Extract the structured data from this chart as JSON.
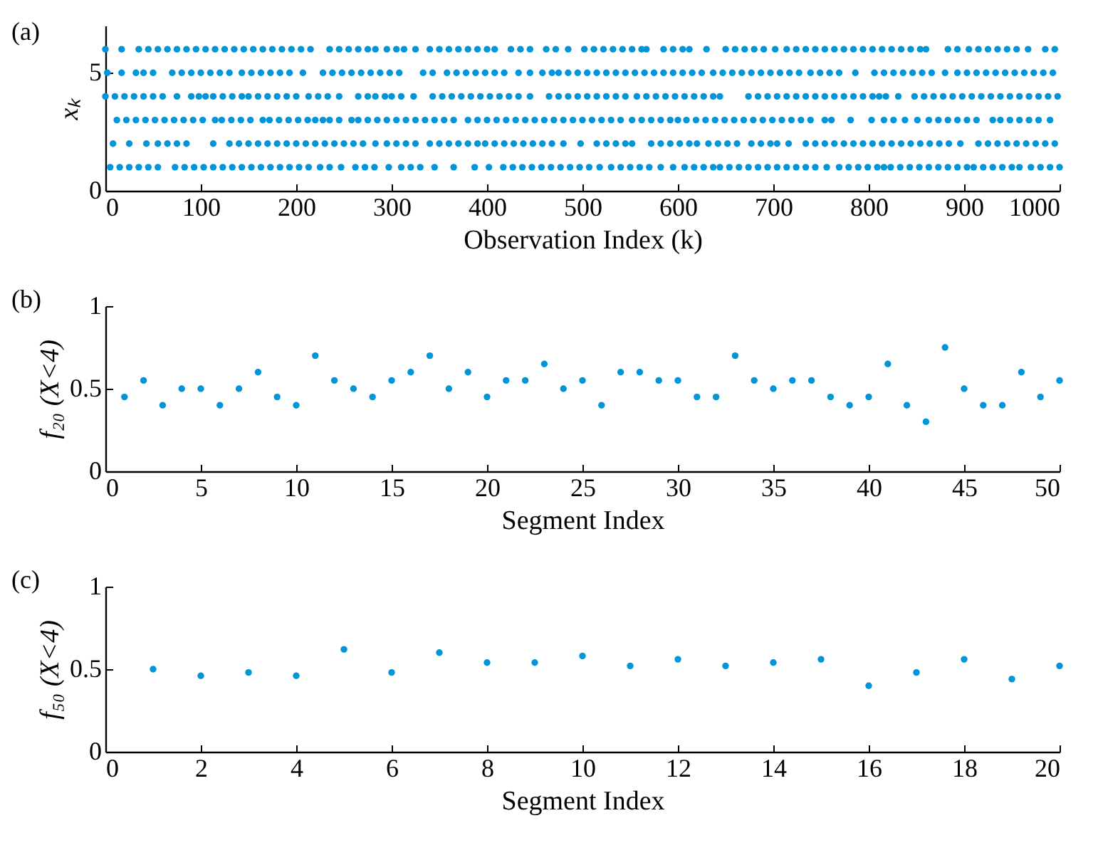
{
  "chart_data": [
    {
      "type": "scatter",
      "title": "(a)",
      "xlabel": "Observation Index (k)",
      "ylabel": "xₖ",
      "marker": "circle",
      "xlim": [
        0,
        1000
      ],
      "xticks": [
        0,
        100,
        200,
        300,
        400,
        500,
        600,
        700,
        800,
        900,
        1000
      ],
      "ylim": [
        0,
        7
      ],
      "yticks": [
        0,
        5
      ],
      "series": [
        {
          "color": "#0094d9",
          "x": [
            0,
            17,
            35,
            45,
            55,
            65,
            75,
            85,
            95,
            105,
            115,
            125,
            135,
            145,
            155,
            165,
            175,
            185,
            195,
            205,
            215,
            235,
            245,
            255,
            265,
            275,
            283,
            295,
            305,
            313,
            325,
            340,
            350,
            360,
            370,
            380,
            390,
            400,
            408,
            425,
            435,
            445,
            462,
            472,
            485,
            502,
            512,
            522,
            532,
            542,
            552,
            562,
            567,
            585,
            595,
            605,
            612,
            630,
            650,
            660,
            670,
            680,
            690,
            702,
            714,
            724,
            734,
            744,
            754,
            764,
            774,
            784,
            794,
            804,
            814,
            824,
            834,
            844,
            854,
            860,
            883,
            893,
            905,
            915,
            925,
            935,
            945,
            955,
            967,
            985,
            995
          ],
          "values": [
            6,
            6,
            6,
            6,
            6,
            6,
            6,
            6,
            6,
            6,
            6,
            6,
            6,
            6,
            6,
            6,
            6,
            6,
            6,
            6,
            6,
            6,
            6,
            6,
            6,
            6,
            6,
            6,
            6,
            6,
            6,
            6,
            6,
            6,
            6,
            6,
            6,
            6,
            6,
            6,
            6,
            6,
            6,
            6,
            6,
            6,
            6,
            6,
            6,
            6,
            6,
            6,
            6,
            6,
            6,
            6,
            6,
            6,
            6,
            6,
            6,
            6,
            6,
            6,
            6,
            6,
            6,
            6,
            6,
            6,
            6,
            6,
            6,
            6,
            6,
            6,
            6,
            6,
            6,
            6,
            6,
            6,
            6,
            6,
            6,
            6,
            6,
            6,
            6,
            6,
            6
          ]
        },
        {
          "color": "#0094d9",
          "x": [
            2,
            17,
            32,
            40,
            50,
            70,
            80,
            90,
            100,
            110,
            120,
            130,
            143,
            153,
            163,
            173,
            183,
            193,
            207,
            228,
            238,
            248,
            258,
            268,
            278,
            288,
            298,
            308,
            333,
            343,
            358,
            368,
            378,
            388,
            398,
            408,
            418,
            433,
            445,
            458,
            468,
            475,
            485,
            495,
            505,
            515,
            525,
            535,
            545,
            555,
            565,
            575,
            585,
            595,
            605,
            615,
            625,
            637,
            647,
            657,
            667,
            677,
            687,
            697,
            707,
            717,
            727,
            739,
            749,
            759,
            769,
            786,
            806,
            816,
            826,
            836,
            846,
            856,
            866,
            880,
            893,
            903,
            913,
            923,
            933,
            943,
            953,
            963,
            973,
            983,
            993
          ],
          "values": [
            5,
            5,
            5,
            5,
            5,
            5,
            5,
            5,
            5,
            5,
            5,
            5,
            5,
            5,
            5,
            5,
            5,
            5,
            5,
            5,
            5,
            5,
            5,
            5,
            5,
            5,
            5,
            5,
            5,
            5,
            5,
            5,
            5,
            5,
            5,
            5,
            5,
            5,
            5,
            5,
            5,
            5,
            5,
            5,
            5,
            5,
            5,
            5,
            5,
            5,
            5,
            5,
            5,
            5,
            5,
            5,
            5,
            5,
            5,
            5,
            5,
            5,
            5,
            5,
            5,
            5,
            5,
            5,
            5,
            5,
            5,
            5,
            5,
            5,
            5,
            5,
            5,
            5,
            5,
            5,
            5,
            5,
            5,
            5,
            5,
            5,
            5,
            5,
            5,
            5,
            5
          ]
        },
        {
          "color": "#0094d9",
          "x": [
            0,
            10,
            20,
            30,
            40,
            50,
            60,
            75,
            90,
            98,
            105,
            113,
            123,
            133,
            143,
            150,
            160,
            170,
            180,
            190,
            200,
            213,
            223,
            233,
            245,
            265,
            275,
            283,
            293,
            300,
            310,
            323,
            343,
            353,
            363,
            373,
            383,
            393,
            403,
            413,
            423,
            433,
            445,
            465,
            475,
            485,
            495,
            505,
            515,
            525,
            535,
            545,
            557,
            567,
            577,
            587,
            597,
            607,
            617,
            627,
            637,
            644,
            674,
            684,
            694,
            704,
            714,
            724,
            734,
            744,
            754,
            764,
            774,
            784,
            794,
            804,
            811,
            818,
            831,
            848,
            858,
            868,
            878,
            888,
            898,
            908,
            918,
            928,
            938,
            948,
            958,
            968,
            978,
            988,
            998
          ],
          "values": [
            4,
            4,
            4,
            4,
            4,
            4,
            4,
            4,
            4,
            4,
            4,
            4,
            4,
            4,
            4,
            4,
            4,
            4,
            4,
            4,
            4,
            4,
            4,
            4,
            4,
            4,
            4,
            4,
            4,
            4,
            4,
            4,
            4,
            4,
            4,
            4,
            4,
            4,
            4,
            4,
            4,
            4,
            4,
            4,
            4,
            4,
            4,
            4,
            4,
            4,
            4,
            4,
            4,
            4,
            4,
            4,
            4,
            4,
            4,
            4,
            4,
            4,
            4,
            4,
            4,
            4,
            4,
            4,
            4,
            4,
            4,
            4,
            4,
            4,
            4,
            4,
            4,
            4,
            4,
            4,
            4,
            4,
            4,
            4,
            4,
            4,
            4,
            4,
            4,
            4,
            4,
            4,
            4,
            4,
            4
          ]
        },
        {
          "color": "#0094d9",
          "x": [
            12,
            22,
            32,
            42,
            52,
            62,
            72,
            82,
            92,
            102,
            115,
            122,
            132,
            142,
            152,
            165,
            172,
            182,
            192,
            202,
            212,
            220,
            228,
            235,
            245,
            258,
            265,
            275,
            285,
            295,
            305,
            315,
            325,
            335,
            345,
            355,
            365,
            380,
            390,
            400,
            410,
            420,
            430,
            440,
            450,
            460,
            470,
            480,
            490,
            500,
            510,
            520,
            530,
            540,
            552,
            562,
            572,
            582,
            592,
            600,
            609,
            619,
            629,
            639,
            649,
            659,
            669,
            679,
            689,
            699,
            709,
            719,
            729,
            739,
            754,
            761,
            781,
            803,
            816,
            826,
            838,
            851,
            863,
            873,
            883,
            893,
            903,
            913,
            930,
            938,
            948,
            958,
            968,
            978,
            990
          ],
          "values": [
            3,
            3,
            3,
            3,
            3,
            3,
            3,
            3,
            3,
            3,
            3,
            3,
            3,
            3,
            3,
            3,
            3,
            3,
            3,
            3,
            3,
            3,
            3,
            3,
            3,
            3,
            3,
            3,
            3,
            3,
            3,
            3,
            3,
            3,
            3,
            3,
            3,
            3,
            3,
            3,
            3,
            3,
            3,
            3,
            3,
            3,
            3,
            3,
            3,
            3,
            3,
            3,
            3,
            3,
            3,
            3,
            3,
            3,
            3,
            3,
            3,
            3,
            3,
            3,
            3,
            3,
            3,
            3,
            3,
            3,
            3,
            3,
            3,
            3,
            3,
            3,
            3,
            3,
            3,
            3,
            3,
            3,
            3,
            3,
            3,
            3,
            3,
            3,
            3,
            3,
            3,
            3,
            3,
            3,
            3
          ]
        },
        {
          "color": "#0094d9",
          "x": [
            8,
            25,
            43,
            55,
            65,
            75,
            85,
            113,
            130,
            140,
            150,
            160,
            170,
            180,
            190,
            200,
            210,
            220,
            230,
            240,
            250,
            260,
            270,
            283,
            295,
            305,
            315,
            325,
            340,
            350,
            360,
            370,
            380,
            390,
            398,
            408,
            418,
            428,
            438,
            448,
            458,
            468,
            480,
            498,
            515,
            525,
            535,
            545,
            552,
            572,
            582,
            592,
            602,
            612,
            620,
            632,
            642,
            652,
            662,
            677,
            687,
            697,
            704,
            716,
            734,
            744,
            754,
            764,
            774,
            784,
            794,
            804,
            814,
            824,
            834,
            844,
            854,
            864,
            874,
            884,
            896,
            915,
            925,
            935,
            945,
            955,
            965,
            975,
            985,
            995
          ],
          "values": [
            2,
            2,
            2,
            2,
            2,
            2,
            2,
            2,
            2,
            2,
            2,
            2,
            2,
            2,
            2,
            2,
            2,
            2,
            2,
            2,
            2,
            2,
            2,
            2,
            2,
            2,
            2,
            2,
            2,
            2,
            2,
            2,
            2,
            2,
            2,
            2,
            2,
            2,
            2,
            2,
            2,
            2,
            2,
            2,
            2,
            2,
            2,
            2,
            2,
            2,
            2,
            2,
            2,
            2,
            2,
            2,
            2,
            2,
            2,
            2,
            2,
            2,
            2,
            2,
            2,
            2,
            2,
            2,
            2,
            2,
            2,
            2,
            2,
            2,
            2,
            2,
            2,
            2,
            2,
            2,
            2,
            2,
            2,
            2,
            2,
            2,
            2,
            2,
            2,
            2
          ]
        },
        {
          "color": "#0094d9",
          "x": [
            5,
            15,
            25,
            35,
            45,
            55,
            73,
            83,
            93,
            103,
            113,
            123,
            133,
            143,
            153,
            163,
            173,
            183,
            193,
            203,
            213,
            225,
            235,
            247,
            262,
            272,
            282,
            297,
            310,
            320,
            330,
            345,
            365,
            387,
            402,
            417,
            427,
            437,
            447,
            457,
            467,
            477,
            487,
            497,
            507,
            518,
            530,
            540,
            550,
            560,
            570,
            582,
            595,
            607,
            617,
            627,
            637,
            644,
            654,
            664,
            674,
            684,
            694,
            704,
            714,
            724,
            734,
            744,
            756,
            769,
            779,
            789,
            799,
            809,
            816,
            823,
            833,
            843,
            853,
            863,
            873,
            883,
            893,
            903,
            910,
            920,
            930,
            940,
            950,
            958,
            970,
            980,
            990,
            1000
          ],
          "values": [
            1,
            1,
            1,
            1,
            1,
            1,
            1,
            1,
            1,
            1,
            1,
            1,
            1,
            1,
            1,
            1,
            1,
            1,
            1,
            1,
            1,
            1,
            1,
            1,
            1,
            1,
            1,
            1,
            1,
            1,
            1,
            1,
            1,
            1,
            1,
            1,
            1,
            1,
            1,
            1,
            1,
            1,
            1,
            1,
            1,
            1,
            1,
            1,
            1,
            1,
            1,
            1,
            1,
            1,
            1,
            1,
            1,
            1,
            1,
            1,
            1,
            1,
            1,
            1,
            1,
            1,
            1,
            1,
            1,
            1,
            1,
            1,
            1,
            1,
            1,
            1,
            1,
            1,
            1,
            1,
            1,
            1,
            1,
            1,
            1,
            1,
            1,
            1,
            1,
            1,
            1,
            1,
            1,
            1
          ]
        }
      ]
    },
    {
      "type": "scatter",
      "title": "(b)",
      "xlabel": "Segment Index",
      "ylabel": "f₂₀ (X<4)",
      "marker": "circle",
      "xlim": [
        0,
        50
      ],
      "xticks": [
        0,
        5,
        10,
        15,
        20,
        25,
        30,
        35,
        40,
        45,
        50
      ],
      "ylim": [
        0,
        1
      ],
      "yticks": [
        0,
        0.5,
        1
      ],
      "x": [
        1,
        2,
        3,
        4,
        5,
        6,
        7,
        8,
        9,
        10,
        11,
        12,
        13,
        14,
        15,
        16,
        17,
        18,
        19,
        20,
        21,
        22,
        23,
        24,
        25,
        26,
        27,
        28,
        29,
        30,
        31,
        32,
        33,
        34,
        35,
        36,
        37,
        38,
        39,
        40,
        41,
        42,
        43,
        44,
        45,
        46,
        47,
        48,
        49,
        50
      ],
      "series": [
        {
          "color": "#0094d9",
          "values": [
            0.45,
            0.55,
            0.4,
            0.5,
            0.5,
            0.4,
            0.5,
            0.6,
            0.45,
            0.4,
            0.7,
            0.55,
            0.5,
            0.45,
            0.55,
            0.6,
            0.7,
            0.5,
            0.6,
            0.45,
            0.55,
            0.55,
            0.65,
            0.5,
            0.55,
            0.4,
            0.6,
            0.6,
            0.55,
            0.55,
            0.45,
            0.45,
            0.7,
            0.55,
            0.5,
            0.55,
            0.55,
            0.45,
            0.4,
            0.45,
            0.65,
            0.4,
            0.3,
            0.75,
            0.5,
            0.4,
            0.4,
            0.6,
            0.45,
            0.55
          ]
        }
      ]
    },
    {
      "type": "scatter",
      "title": "(c)",
      "xlabel": "Segment Index",
      "ylabel": "f₅₀ (X<4)",
      "marker": "circle",
      "xlim": [
        0,
        20
      ],
      "xticks": [
        0,
        2,
        4,
        6,
        8,
        10,
        12,
        14,
        16,
        18,
        20
      ],
      "ylim": [
        0,
        1
      ],
      "yticks": [
        0,
        0.5,
        1
      ],
      "x": [
        1,
        2,
        3,
        4,
        5,
        6,
        7,
        8,
        9,
        10,
        11,
        12,
        13,
        14,
        15,
        16,
        17,
        18,
        19,
        20
      ],
      "series": [
        {
          "color": "#0094d9",
          "values": [
            0.5,
            0.46,
            0.48,
            0.46,
            0.62,
            0.48,
            0.6,
            0.54,
            0.54,
            0.58,
            0.52,
            0.56,
            0.52,
            0.54,
            0.56,
            0.4,
            0.48,
            0.56,
            0.44,
            0.52
          ]
        }
      ]
    }
  ]
}
